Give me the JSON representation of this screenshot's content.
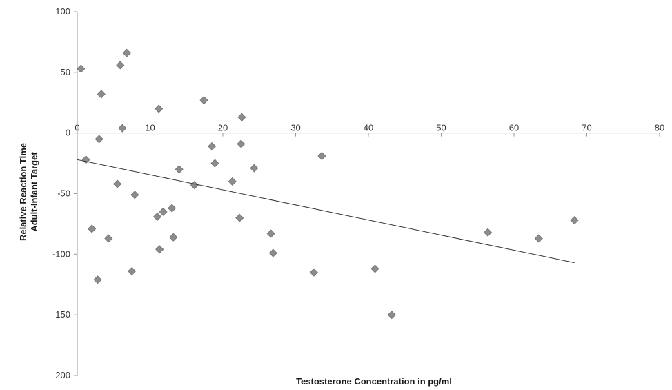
{
  "chart_data": {
    "type": "scatter",
    "title": "",
    "xlabel": "Testosterone Concentration in pg/ml",
    "ylabel_lines": [
      "Relative Reaction Time",
      "Adult-Infant Target"
    ],
    "xlim": [
      0,
      80
    ],
    "ylim": [
      -200,
      100
    ],
    "xticks": [
      0,
      10,
      20,
      30,
      40,
      50,
      60,
      70,
      80
    ],
    "yticks": [
      100,
      50,
      0,
      -50,
      -100,
      -150,
      -200
    ],
    "grid": false,
    "legend": "none",
    "marker": "diamond",
    "marker_color": "#8c8c8c",
    "trendline": {
      "type": "linear",
      "x_range": [
        0,
        68.3
      ],
      "y_start": -22,
      "y_end": -107,
      "color": "#333333"
    },
    "points": [
      {
        "x": 0.5,
        "y": 53
      },
      {
        "x": 1.2,
        "y": -22
      },
      {
        "x": 2.0,
        "y": -79
      },
      {
        "x": 2.8,
        "y": -121
      },
      {
        "x": 3.0,
        "y": -5
      },
      {
        "x": 3.3,
        "y": 32
      },
      {
        "x": 4.3,
        "y": -87
      },
      {
        "x": 5.5,
        "y": -42
      },
      {
        "x": 5.9,
        "y": 56
      },
      {
        "x": 6.2,
        "y": 4
      },
      {
        "x": 6.8,
        "y": 66
      },
      {
        "x": 7.5,
        "y": -114
      },
      {
        "x": 7.9,
        "y": -51
      },
      {
        "x": 11.0,
        "y": -69
      },
      {
        "x": 11.2,
        "y": 20
      },
      {
        "x": 11.3,
        "y": -96
      },
      {
        "x": 11.8,
        "y": -65
      },
      {
        "x": 13.0,
        "y": -62
      },
      {
        "x": 13.2,
        "y": -86
      },
      {
        "x": 14.0,
        "y": -30
      },
      {
        "x": 16.1,
        "y": -43
      },
      {
        "x": 17.4,
        "y": 27
      },
      {
        "x": 18.5,
        "y": -11
      },
      {
        "x": 18.9,
        "y": -25
      },
      {
        "x": 21.3,
        "y": -40
      },
      {
        "x": 22.3,
        "y": -70
      },
      {
        "x": 22.5,
        "y": -9
      },
      {
        "x": 22.6,
        "y": 13
      },
      {
        "x": 24.3,
        "y": -29
      },
      {
        "x": 26.6,
        "y": -83
      },
      {
        "x": 26.9,
        "y": -99
      },
      {
        "x": 32.5,
        "y": -115
      },
      {
        "x": 33.6,
        "y": -19
      },
      {
        "x": 40.9,
        "y": -112
      },
      {
        "x": 43.2,
        "y": -150
      },
      {
        "x": 56.4,
        "y": -82
      },
      {
        "x": 63.4,
        "y": -87
      },
      {
        "x": 68.3,
        "y": -72
      }
    ]
  }
}
